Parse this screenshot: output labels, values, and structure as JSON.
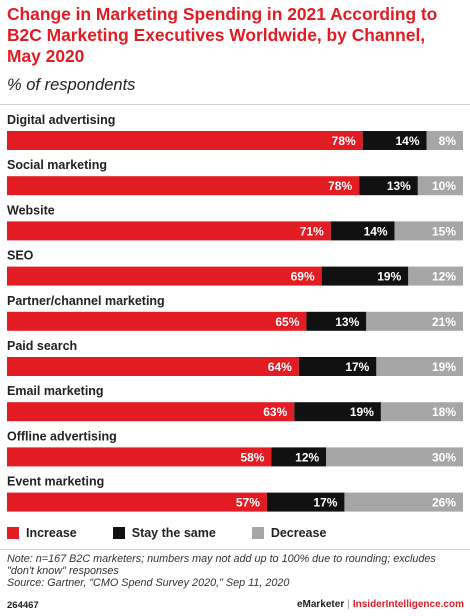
{
  "header": {
    "title": "Change in Marketing Spending in 2021 According to B2C Marketing Executives Worldwide, by Channel, May 2020",
    "subtitle": "% of respondents"
  },
  "colors": {
    "increase": "#e31b23",
    "stay": "#111111",
    "decrease": "#a6a6a6",
    "title": "#e31b23"
  },
  "chart_data": {
    "type": "bar",
    "orientation": "horizontal",
    "stacked": true,
    "title": "Change in Marketing Spending in 2021 According to B2C Marketing Executives Worldwide, by Channel, May 2020",
    "subtitle": "% of respondents",
    "categories": [
      "Digital advertising",
      "Social marketing",
      "Website",
      "SEO",
      "Partner/channel marketing",
      "Paid search",
      "Email marketing",
      "Offline advertising",
      "Event marketing"
    ],
    "series": [
      {
        "name": "Increase",
        "values": [
          78,
          78,
          71,
          69,
          65,
          64,
          63,
          58,
          57
        ]
      },
      {
        "name": "Stay the same",
        "values": [
          14,
          13,
          14,
          19,
          13,
          17,
          19,
          12,
          17
        ]
      },
      {
        "name": "Decrease",
        "values": [
          8,
          10,
          15,
          12,
          21,
          19,
          18,
          30,
          26
        ]
      }
    ],
    "value_suffix": "%",
    "legend_position": "bottom",
    "grid": false
  },
  "legend": {
    "items": [
      {
        "label": "Increase"
      },
      {
        "label": "Stay the same"
      },
      {
        "label": "Decrease"
      }
    ]
  },
  "footer": {
    "note_line1": "Note: n=167 B2C marketers; numbers may not add up to 100% due to rounding; excludes",
    "note_line2": "\"don't know\" responses",
    "source": "Source: Gartner, \"CMO Spend Survey 2020,\" Sep 11, 2020",
    "chart_id": "264467",
    "brand": "eMarketer",
    "separator": "|",
    "brand2": "InsiderIntelligence.com"
  }
}
